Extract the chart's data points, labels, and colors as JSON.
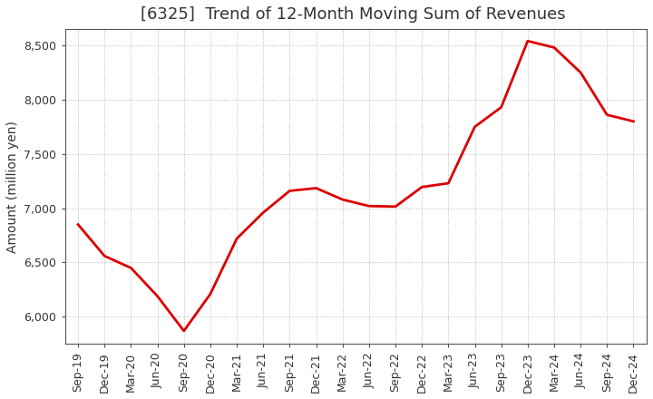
{
  "title": "[6325]  Trend of 12-Month Moving Sum of Revenues",
  "ylabel": "Amount (million yen)",
  "line_color": "#dd0000",
  "background_color": "#ffffff",
  "plot_bg_color": "#ffffff",
  "grid_color": "#999999",
  "title_color": "#333333",
  "tick_color": "#333333",
  "ylim": [
    5750,
    8650
  ],
  "yticks": [
    6000,
    6500,
    7000,
    7500,
    8000,
    8500
  ],
  "x_labels": [
    "Sep-19",
    "Dec-19",
    "Mar-20",
    "Jun-20",
    "Sep-20",
    "Dec-20",
    "Mar-21",
    "Jun-21",
    "Sep-21",
    "Dec-21",
    "Mar-22",
    "Jun-22",
    "Sep-22",
    "Dec-22",
    "Mar-23",
    "Jun-23",
    "Sep-23",
    "Dec-23",
    "Mar-24",
    "Jun-24",
    "Sep-24",
    "Dec-24"
  ],
  "values": [
    6850,
    6560,
    6450,
    6190,
    5870,
    6210,
    6720,
    6960,
    7160,
    7185,
    7080,
    7020,
    7015,
    7195,
    7230,
    7750,
    7930,
    8540,
    8480,
    8250,
    7860,
    7800
  ],
  "title_fontsize": 13,
  "axis_label_fontsize": 10,
  "tick_fontsize": 9,
  "line_width": 2.0
}
